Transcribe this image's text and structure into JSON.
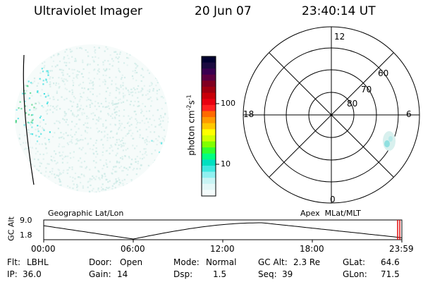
{
  "header": {
    "instrument": "Ultraviolet Imager",
    "date": "20 Jun 07",
    "time": "23:40:14 UT"
  },
  "colorbar": {
    "label": "photon cm",
    "label_sup1": "-2",
    "label_s": "s",
    "label_sup2": "-1",
    "ticks": [
      "100",
      "10"
    ],
    "colors": [
      "#000030",
      "#1a0a40",
      "#3a0050",
      "#5c0040",
      "#800020",
      "#a00010",
      "#c80008",
      "#e80010",
      "#ff2020",
      "#ff6a00",
      "#ff9a00",
      "#ffc800",
      "#ffff00",
      "#d0ff00",
      "#80ff00",
      "#30ff30",
      "#00ff80",
      "#00e0c0",
      "#40e8e0",
      "#90f0f0",
      "#c8f4f4",
      "#e4f8f8",
      "#f4fcfc"
    ]
  },
  "left_panel": {
    "caption": "Geographic Lat/Lon"
  },
  "polar": {
    "caption": "Apex  MLat/MLT",
    "mlt_labels": {
      "top": "12",
      "bottom": "0",
      "left": "18",
      "right": "6"
    },
    "lat_labels": [
      "60",
      "70",
      "80"
    ]
  },
  "altitude_strip": {
    "axis_label": "GC Alt",
    "ytick_top": "9.0",
    "ytick_bottom": "1.8",
    "xticks": [
      "00:00",
      "06:00",
      "12:00",
      "18:00",
      "23:59"
    ]
  },
  "status": {
    "flt_label": "Flt:",
    "flt_value": "LBHL",
    "ip_label": "IP:",
    "ip_value": "36.0",
    "door_label": "Door:",
    "door_value": "Open",
    "gain_label": "Gain:",
    "gain_value": "14",
    "mode_label": "Mode:",
    "mode_value": "Normal",
    "dsp_label": "Dsp:",
    "dsp_value": "1.5",
    "gcalt_label": "GC Alt:",
    "gcalt_value": "2.3 Re",
    "seq_label": "Seq:",
    "seq_value": "39",
    "glat_label": "GLat:",
    "glat_value": "64.6",
    "glon_label": "GLon:",
    "glon_value": "71.5"
  },
  "colors": {
    "noise": "#c8e8e4",
    "cyan": "#40e0e0",
    "green": "#40d080",
    "marker": "#e00000"
  }
}
